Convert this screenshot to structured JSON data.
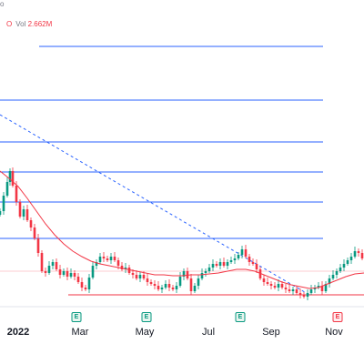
{
  "status_bar": {
    "left_text": "o",
    "volume_ma_label": "O",
    "volume_label": "Vol",
    "volume_value": "2.662M"
  },
  "x_axis": {
    "labels": [
      {
        "text": "2022",
        "year": true
      },
      {
        "text": "Mar",
        "year": false
      },
      {
        "text": "May",
        "year": false
      },
      {
        "text": "Jul",
        "year": false
      },
      {
        "text": "Sep",
        "year": false
      },
      {
        "text": "Nov",
        "year": false
      }
    ]
  },
  "events": [
    {
      "letter": "E",
      "color": "green"
    },
    {
      "letter": "E",
      "color": "green"
    },
    {
      "letter": "E",
      "color": "green"
    },
    {
      "letter": "E",
      "color": "red"
    }
  ],
  "colors": {
    "up": "#089981",
    "down": "#f23645",
    "ma": "#f23645",
    "level_lines": "#2962ff",
    "trendline": "#2962ff",
    "support": "#f23645"
  },
  "chart_data": {
    "type": "candlestick",
    "indicator": "moving-average",
    "overlays": [
      "horizontal-levels",
      "dashed-trendline",
      "horizontal-support"
    ],
    "grid": false,
    "legend": "none"
  }
}
